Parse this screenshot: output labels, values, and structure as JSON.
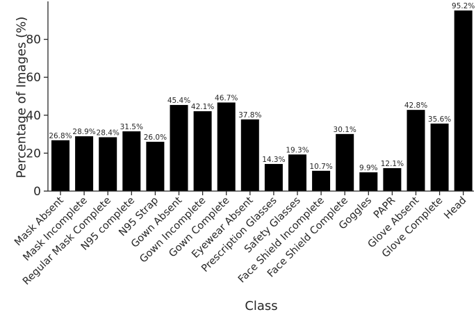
{
  "chart_data": {
    "type": "bar",
    "xlabel": "Class",
    "ylabel": "Percentage of Images (%)",
    "ylim": [
      0,
      100
    ],
    "yticks": [
      "0",
      "20",
      "40",
      "60",
      "80"
    ],
    "grid": false,
    "bar_color": "#000000",
    "categories": [
      "Mask Absent",
      "Mask Incomplete",
      "Regular Mask Complete",
      "N95 complete",
      "N95 Strap",
      "Gown Absent",
      "Gown Incomplete",
      "Gown Complete",
      "Eyewear Absent",
      "Prescription Glasses",
      "Safety Glasses",
      "Face Shield Incomplete",
      "Face Shield Complete",
      "Goggles",
      "PAPR",
      "Glove Absent",
      "Glove Complete",
      "Head"
    ],
    "values": [
      26.8,
      28.9,
      28.4,
      31.5,
      26.0,
      45.4,
      42.1,
      46.7,
      37.8,
      14.3,
      19.3,
      10.7,
      30.1,
      9.9,
      12.1,
      42.8,
      35.6,
      95.2
    ],
    "data_labels": [
      "26.8%",
      "28.9%",
      "28.4%",
      "31.5%",
      "26.0%",
      "45.4%",
      "42.1%",
      "46.7%",
      "37.8%",
      "14.3%",
      "19.3%",
      "10.7%",
      "30.1%",
      "9.9%",
      "12.1%",
      "42.8%",
      "35.6%",
      "95.2%"
    ]
  }
}
